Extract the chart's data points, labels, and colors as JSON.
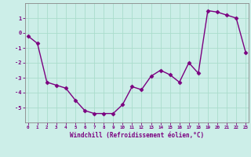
{
  "x": [
    0,
    1,
    2,
    3,
    4,
    5,
    6,
    7,
    8,
    9,
    10,
    11,
    12,
    13,
    14,
    15,
    16,
    17,
    18,
    19,
    20,
    21,
    22,
    23
  ],
  "y": [
    -0.2,
    -0.7,
    -3.3,
    -3.5,
    -3.7,
    -4.5,
    -5.2,
    -5.4,
    -5.4,
    -5.4,
    -4.8,
    -3.6,
    -3.8,
    -2.9,
    -2.5,
    -2.8,
    -3.3,
    -2.0,
    -2.7,
    1.5,
    1.4,
    1.2,
    1.0,
    -1.3
  ],
  "line_color": "#7B0080",
  "marker": "D",
  "marker_size": 2.5,
  "bg_color": "#cceee8",
  "grid_color": "#aaddcc",
  "axes_color": "#7B0080",
  "xlabel": "Windchill (Refroidissement éolien,°C)",
  "ylim": [
    -6,
    2
  ],
  "xlim": [
    -0.3,
    23.3
  ],
  "yticks": [
    -5,
    -4,
    -3,
    -2,
    -1,
    0,
    1
  ],
  "xticks": [
    0,
    1,
    2,
    3,
    4,
    5,
    6,
    7,
    8,
    9,
    10,
    11,
    12,
    13,
    14,
    15,
    16,
    17,
    18,
    19,
    20,
    21,
    22,
    23
  ]
}
